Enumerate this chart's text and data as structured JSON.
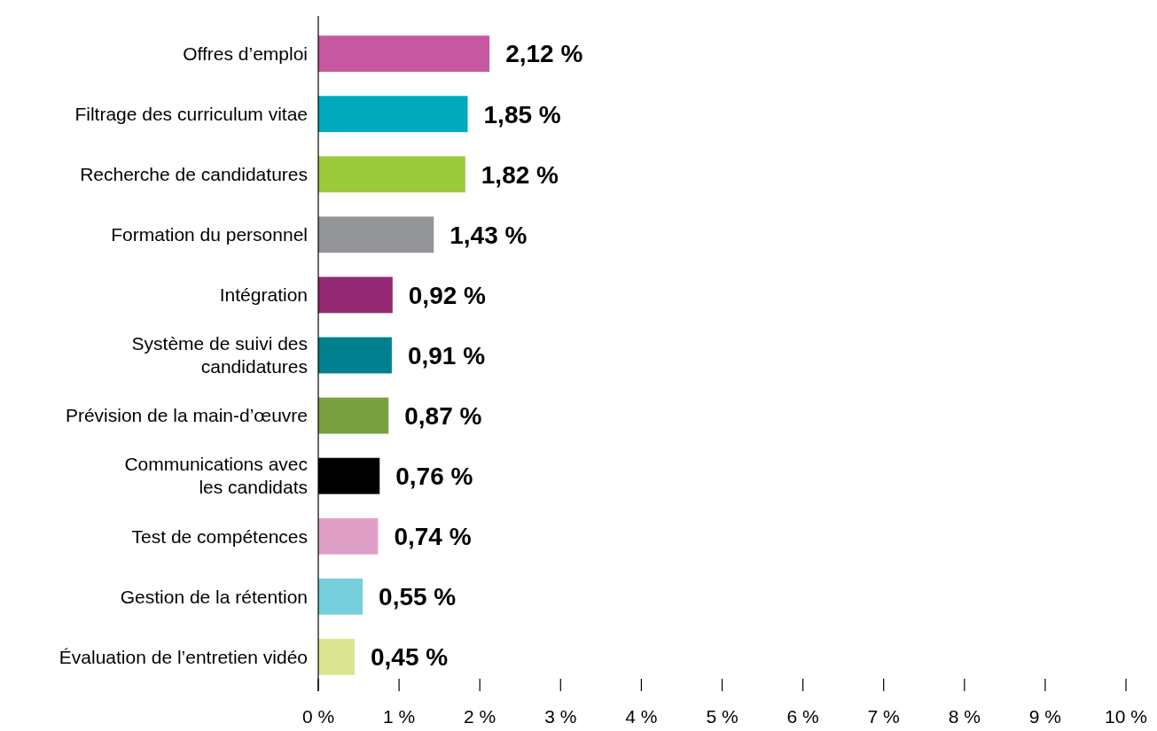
{
  "chart_data": {
    "type": "bar",
    "orientation": "horizontal",
    "categories": [
      "Offres d’emploi",
      "Filtrage des curriculum vitae",
      "Recherche de candidatures",
      "Formation du personnel",
      "Intégration",
      "Système de suivi des candidatures",
      "Prévision de la main-d’œuvre",
      "Communications avec les candidats",
      "Test de compétences",
      "Gestion de la rétention",
      "Évaluation de l’entretien vidéo"
    ],
    "values": [
      2.12,
      1.85,
      1.82,
      1.43,
      0.92,
      0.91,
      0.87,
      0.76,
      0.74,
      0.55,
      0.45
    ],
    "colors": [
      "#c757a0",
      "#00a9bc",
      "#9bc93b",
      "#939598",
      "#932a73",
      "#00808f",
      "#7aa13f",
      "#000000",
      "#e0a0c6",
      "#76cfdc",
      "#d9e592"
    ],
    "value_labels": [
      "2,12 %",
      "1,85 %",
      "1,82 %",
      "1,43 %",
      "0,92 %",
      "0,91 %",
      "0,87 %",
      "0,76 %",
      "0,74 %",
      "0,55 %",
      "0,45 %"
    ],
    "xlim": [
      0,
      10
    ],
    "xticks": [
      {
        "value": 0,
        "label": "0 %"
      },
      {
        "value": 1,
        "label": "1 %"
      },
      {
        "value": 2,
        "label": "2 %"
      },
      {
        "value": 3,
        "label": "3 %"
      },
      {
        "value": 4,
        "label": "4 %"
      },
      {
        "value": 5,
        "label": "5 %"
      },
      {
        "value": 6,
        "label": "6 %"
      },
      {
        "value": 7,
        "label": "7 %"
      },
      {
        "value": 8,
        "label": "8 %"
      },
      {
        "value": 9,
        "label": "9 %"
      },
      {
        "value": 10,
        "label": "10 %"
      }
    ],
    "grid": false
  }
}
